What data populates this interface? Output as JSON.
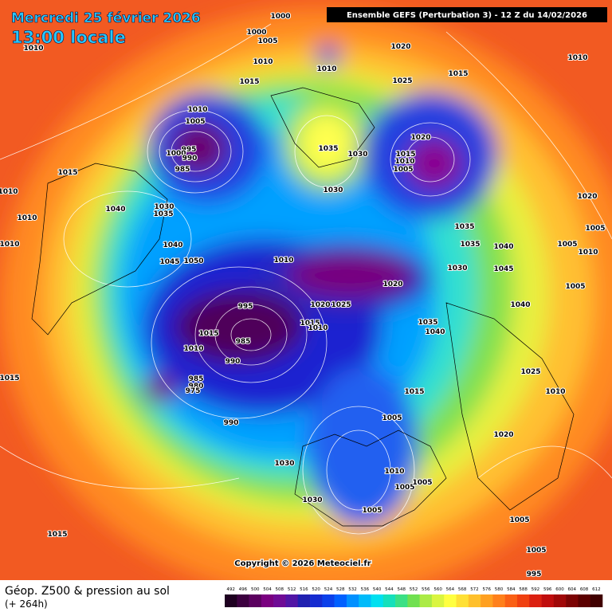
{
  "header": {
    "date": "Mercredi 25 février 2026",
    "time": "13:00 locale",
    "model": "Ensemble GEFS  (Perturbation 3)  -  12 Z du 14/02/2026"
  },
  "map": {
    "isobar_labels": [
      1000,
      1000,
      1005,
      1010,
      1010,
      1010,
      1020,
      1015,
      1025,
      1010,
      1015,
      1010,
      1005,
      995,
      1000,
      990,
      985,
      1035,
      1030,
      1020,
      1015,
      1010,
      1005,
      1030,
      1015,
      1010,
      1040,
      1030,
      1035,
      1010,
      1010,
      1040,
      1045,
      1050,
      1010,
      1035,
      1035,
      1040,
      1020,
      1005,
      1005,
      1010,
      1030,
      1045,
      1020,
      1005,
      995,
      1020,
      1025,
      1040,
      1015,
      1010,
      1035,
      1040,
      1015,
      1010,
      985,
      990,
      1025,
      1015,
      985,
      980,
      975,
      1015,
      1010,
      1005,
      990,
      1020,
      1030,
      1010,
      1005,
      1005,
      1030,
      1005,
      1005,
      1015,
      1005,
      995
    ]
  },
  "footer": {
    "copyright": "Copyright © 2026 Meteociel.fr",
    "title": "Géop. Z500 & pression au sol",
    "lead": "(+ 264h)",
    "scale": [
      492,
      496,
      500,
      504,
      508,
      512,
      516,
      520,
      524,
      528,
      532,
      536,
      540,
      544,
      548,
      552,
      556,
      560,
      564,
      568,
      572,
      576,
      580,
      584,
      588,
      592,
      596,
      600,
      604,
      608,
      612
    ]
  }
}
